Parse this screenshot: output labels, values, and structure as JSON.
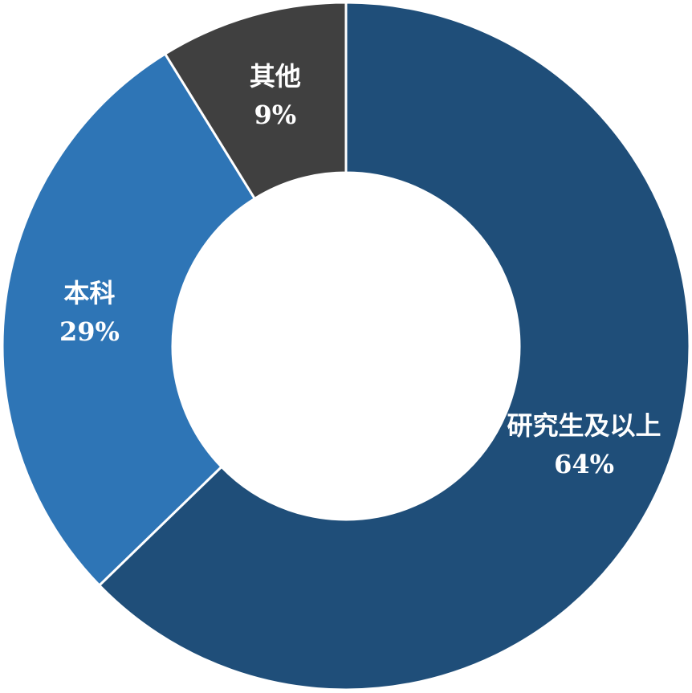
{
  "chart_data": {
    "type": "donut",
    "categories": [
      "研究生及以上",
      "本科",
      "其他"
    ],
    "values": [
      64,
      29,
      9
    ],
    "value_labels": [
      "64%",
      "29%",
      "9%"
    ],
    "colors": [
      "#1f4e79",
      "#2e75b6",
      "#404040"
    ]
  }
}
